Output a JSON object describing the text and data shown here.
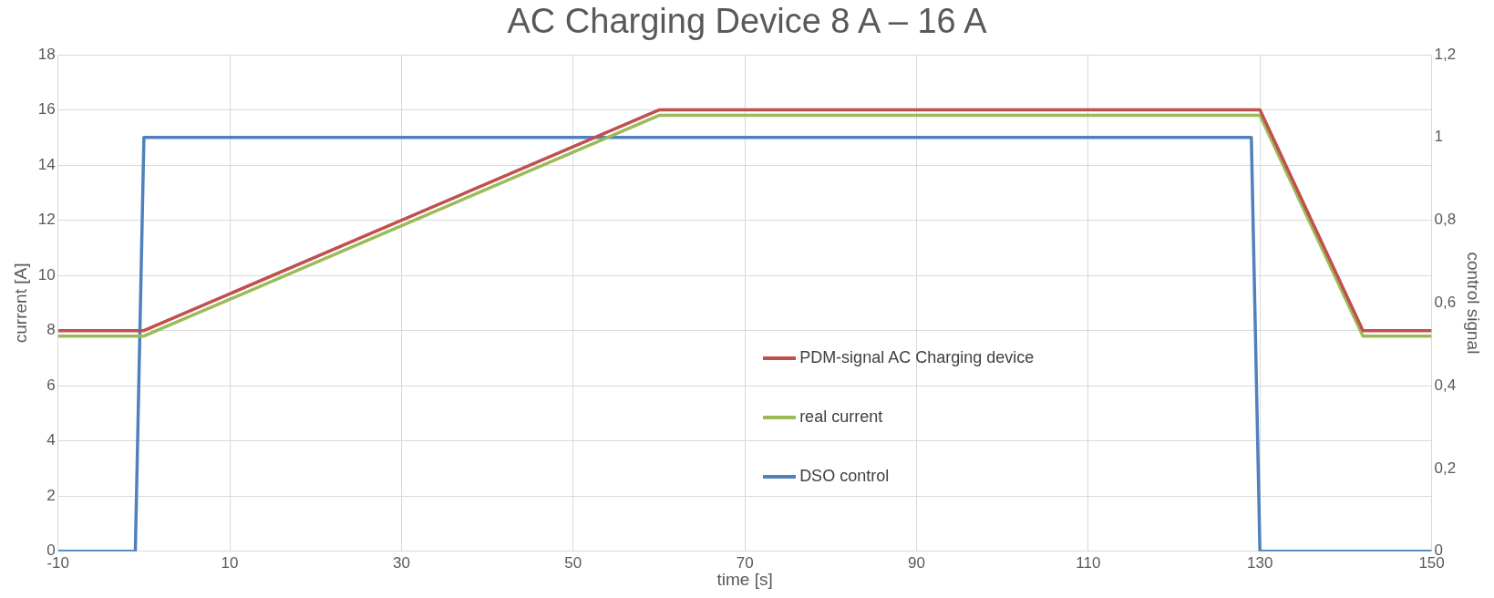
{
  "chart_data": {
    "type": "line",
    "title": "AC Charging Device 8 A – 16 A",
    "xlabel": "time [s]",
    "ylabel": "current [A]",
    "y2label": "control signal",
    "xlim": [
      -10,
      150
    ],
    "xticks": [
      -10,
      10,
      30,
      50,
      70,
      90,
      110,
      130,
      150
    ],
    "ylim": [
      0,
      18
    ],
    "yticks": [
      0,
      2,
      4,
      6,
      8,
      10,
      12,
      14,
      16,
      18
    ],
    "y2lim": [
      0,
      1.2
    ],
    "y2ticks": [
      0,
      {
        "value": 0.2,
        "label": "0,2"
      },
      {
        "value": 0.4,
        "label": "0,4"
      },
      {
        "value": 0.6,
        "label": "0,6"
      },
      {
        "value": 0.8,
        "label": "0,8"
      },
      1,
      {
        "value": 1.2,
        "label": "1,2"
      }
    ],
    "grid": true,
    "legend": "center",
    "marker": "none",
    "line_style": "solid",
    "series": [
      {
        "name": "PDM-signal AC Charging device",
        "color": "#c0504d",
        "x": [
          -10,
          0,
          60,
          130,
          142,
          150
        ],
        "values": [
          8,
          8,
          16,
          16,
          8,
          8
        ]
      },
      {
        "name": "real current",
        "color": "#9bbb59",
        "x": [
          -10,
          0,
          60,
          130,
          142,
          150
        ],
        "values": [
          7.8,
          7.8,
          15.8,
          15.8,
          7.8,
          7.8
        ]
      },
      {
        "name": "DSO control",
        "color": "#4f81bd",
        "axis": "y2",
        "x": [
          -10,
          -1,
          0,
          129,
          130,
          150
        ],
        "values": [
          0,
          0,
          1,
          1,
          0,
          0
        ]
      }
    ]
  }
}
